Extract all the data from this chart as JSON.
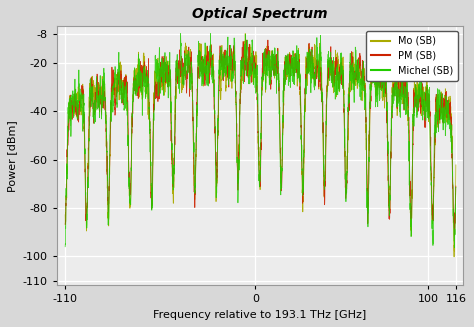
{
  "title": "Optical Spectrum",
  "xlabel": "Frequency relative to 193.1 THz [GHz]",
  "ylabel": "Power [dBm]",
  "xlim": [
    -115,
    120
  ],
  "ylim": [
    -112,
    -5
  ],
  "yticks": [
    -8,
    -20,
    -40,
    -60,
    -80,
    -100,
    -110
  ],
  "ytick_labels": [
    "-8",
    "-20",
    "-40",
    "-60",
    "-80",
    "-100",
    "-110"
  ],
  "xticks": [
    -110,
    0,
    100,
    116
  ],
  "xtick_labels": [
    "-110",
    "0",
    "100",
    "116"
  ],
  "legend_labels": [
    "Mo (SB)",
    "PM (SB)",
    "Michel (SB)"
  ],
  "legend_colors": [
    "#aaaa00",
    "#cc2200",
    "#22cc00"
  ],
  "fig_bg": "#d8d8d8",
  "ax_bg": "#ececec",
  "n_points": 3000,
  "f_min": -110,
  "f_max": 116,
  "noise_floor": -108
}
